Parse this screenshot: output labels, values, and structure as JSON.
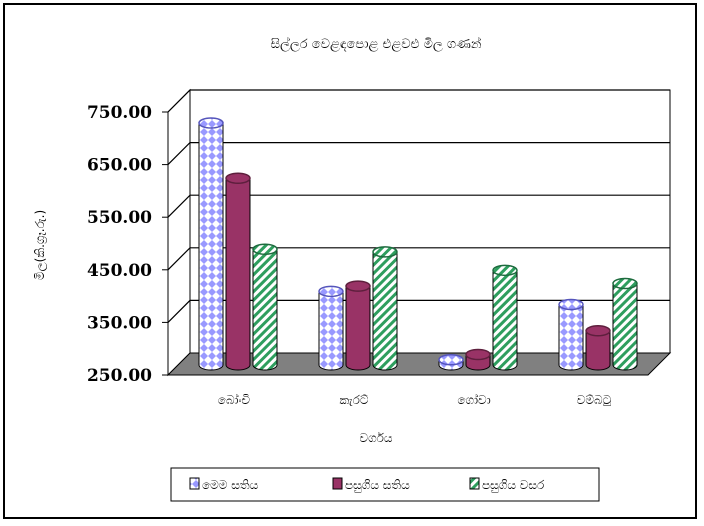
{
  "chart_data": {
    "type": "bar",
    "title": "සිල්ලර වෙළඳපොළ එළවළු මිල ගණන්",
    "xlabel": "වර්ගය",
    "ylabel": "මිල(කි.ග්‍රෑ.රු.)",
    "categories": [
      "බෝංචි",
      "කැරට්",
      "ගෝවා",
      "වම්බටු"
    ],
    "ylim": [
      250,
      750
    ],
    "yticks": [
      "250.00",
      "350.00",
      "450.00",
      "550.00",
      "650.00",
      "750.00"
    ],
    "grid": true,
    "legend_position": "bottom",
    "series": [
      {
        "name": "මෙම සතිය",
        "values": [
          710,
          390,
          260,
          365
        ],
        "color": "#9999ff"
      },
      {
        "name": "පසුගිය සතිය",
        "values": [
          605,
          400,
          270,
          315
        ],
        "color": "#993366"
      },
      {
        "name": "පසුගිය වසර",
        "values": [
          470,
          465,
          430,
          405
        ],
        "color": "#2e9e5e"
      }
    ]
  }
}
